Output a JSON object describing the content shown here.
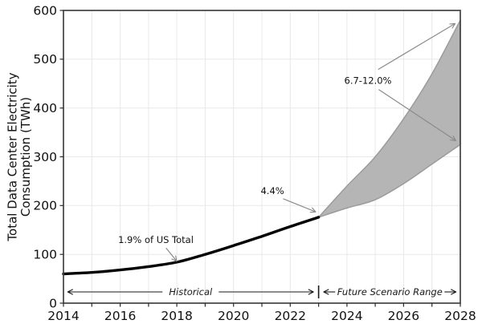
{
  "figure": {
    "background": "#ffffff"
  },
  "chart_data": {
    "type": "line",
    "title": "",
    "xlabel": "",
    "ylabel": "Total Data Center Electricity Consumption (TWh)",
    "ylabel_lines": [
      "Total Data Center Electricity",
      "Consumption (TWh)"
    ],
    "xlim": [
      2014,
      2028
    ],
    "ylim": [
      0,
      600
    ],
    "x_tick_years": [
      2014,
      2015,
      2016,
      2017,
      2018,
      2019,
      2020,
      2021,
      2022,
      2023,
      2024,
      2025,
      2026,
      2027,
      2028
    ],
    "x_tick_labels": [
      "2014",
      "2016",
      "2018",
      "2020",
      "2022",
      "2024",
      "2026",
      "2028"
    ],
    "x_labeled_years": [
      2014,
      2016,
      2018,
      2020,
      2022,
      2024,
      2026,
      2028
    ],
    "y_ticks": [
      0,
      100,
      200,
      300,
      400,
      500,
      600
    ],
    "grid": true,
    "legend": "none",
    "series": [
      {
        "name": "Historical",
        "kind": "line",
        "color": "#000000",
        "line_width": 3.4,
        "x": [
          2014,
          2015,
          2016,
          2017,
          2018,
          2019,
          2020,
          2021,
          2022,
          2023
        ],
        "values": [
          60,
          63,
          68,
          75,
          84,
          100,
          118,
          137,
          157,
          176
        ]
      },
      {
        "name": "Future Scenario Range",
        "kind": "band",
        "fill_color": "#b5b5b5",
        "edge_color": "#9b9b9b",
        "x": [
          2023,
          2024,
          2025,
          2026,
          2027,
          2028
        ],
        "lower": [
          176,
          195,
          212,
          245,
          285,
          325
        ],
        "upper": [
          176,
          240,
          300,
          378,
          470,
          580
        ]
      }
    ],
    "annotations": [
      {
        "text": "1.9% of US Total",
        "x": 2017.26,
        "y": 130,
        "arrows": [
          {
            "from": [
              2017.62,
              113
            ],
            "to": [
              2018.0,
              86
            ]
          }
        ]
      },
      {
        "text": "4.4%",
        "x": 2021.37,
        "y": 230,
        "arrows": [
          {
            "from": [
              2021.75,
              214
            ],
            "to": [
              2022.9,
              187
            ]
          }
        ]
      },
      {
        "text": "6.7-12.0%",
        "x": 2024.74,
        "y": 456,
        "arrows": [
          {
            "from": [
              2025.1,
              479
            ],
            "to": [
              2027.82,
              573
            ]
          },
          {
            "from": [
              2025.12,
              438
            ],
            "to": [
              2027.84,
              333
            ]
          }
        ]
      }
    ],
    "span_markers": {
      "y": 23,
      "separator_x": 2023,
      "spans": [
        {
          "label": "Historical",
          "from": 2014.15,
          "to": 2022.82
        },
        {
          "label": "Future Scenario Range",
          "from": 2023.18,
          "to": 2027.85
        }
      ]
    },
    "colors": {
      "grid": "#e8e8e8",
      "spine": "#424242",
      "tick": "#2b2b2b",
      "text": "#111111",
      "annotation_arrow": "#8a8a8a",
      "span_marker": "#1a1a1a"
    }
  }
}
